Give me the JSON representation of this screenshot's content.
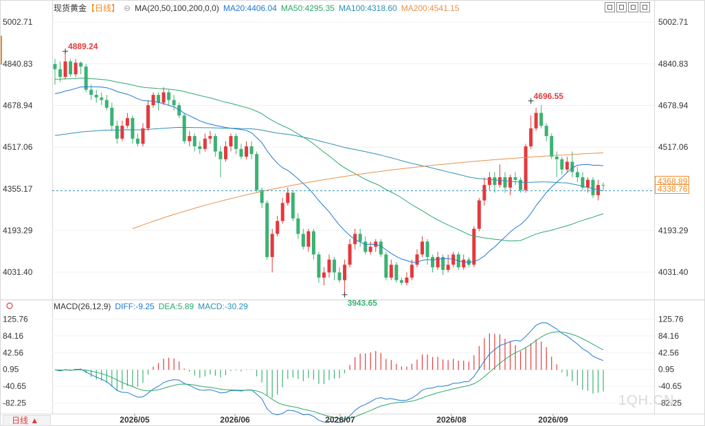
{
  "header": {
    "symbol": "现货黄金",
    "period": "【日线】",
    "settings_glyph": "⊖",
    "ma_label": "MA(20,50,100,200,0,0)",
    "ma20": "MA20:4406.04",
    "ma50": "MA50:4295.35",
    "ma100": "MA100:4318.60",
    "ma200": "MA200:4541.15"
  },
  "macd_header": {
    "label": "MACD(26,12,9)",
    "diff": "DIFF:-9.25",
    "dea": "DEA:5.89",
    "macd": "MACD:-30.29"
  },
  "footer": {
    "period_button": "日线 ▲"
  },
  "watermark": "1QH.CN",
  "colors": {
    "up": "#e4393c",
    "down": "#3bb273",
    "ma20": "#1e78d2",
    "ma50": "#2aa86a",
    "ma100": "#2a8fb5",
    "ma200": "#e8914a",
    "accent": "#f08a24"
  },
  "icons": [
    "zoom-in-icon",
    "zoom-out-icon",
    "prev-icon",
    "next-icon"
  ],
  "chart_data": {
    "type": "candlestick",
    "price_axis": {
      "ticks": [
        "5002.71",
        "4840.83",
        "4678.94",
        "4517.06",
        "4355.17",
        "4193.29",
        "4031.40"
      ],
      "range": [
        3930,
        5030
      ]
    },
    "x_labels": [
      "2026/05",
      "2026/06",
      "2026/07",
      "2026/08",
      "2026/09"
    ],
    "annotations": {
      "high": "4889.24",
      "low": "3943.65",
      "high2": "4696.55"
    },
    "current_price": "4368.89",
    "current_price_ma": "4338.76",
    "candles": [
      [
        4840,
        4820,
        4860,
        4760
      ],
      [
        4820,
        4790,
        4850,
        4770
      ],
      [
        4790,
        4850,
        4889,
        4780
      ],
      [
        4850,
        4800,
        4860,
        4790
      ],
      [
        4800,
        4845,
        4860,
        4790
      ],
      [
        4845,
        4830,
        4850,
        4800
      ],
      [
        4830,
        4740,
        4840,
        4730
      ],
      [
        4740,
        4720,
        4760,
        4700
      ],
      [
        4720,
        4710,
        4740,
        4690
      ],
      [
        4710,
        4700,
        4730,
        4680
      ],
      [
        4700,
        4670,
        4720,
        4660
      ],
      [
        4670,
        4600,
        4690,
        4580
      ],
      [
        4600,
        4550,
        4620,
        4530
      ],
      [
        4550,
        4600,
        4620,
        4540
      ],
      [
        4600,
        4630,
        4650,
        4590
      ],
      [
        4630,
        4550,
        4640,
        4530
      ],
      [
        4550,
        4530,
        4570,
        4520
      ],
      [
        4530,
        4590,
        4610,
        4520
      ],
      [
        4590,
        4680,
        4700,
        4580
      ],
      [
        4680,
        4720,
        4730,
        4670
      ],
      [
        4720,
        4690,
        4730,
        4660
      ],
      [
        4690,
        4730,
        4750,
        4680
      ],
      [
        4730,
        4700,
        4740,
        4680
      ],
      [
        4700,
        4680,
        4720,
        4660
      ],
      [
        4680,
        4640,
        4690,
        4630
      ],
      [
        4640,
        4540,
        4650,
        4530
      ],
      [
        4540,
        4560,
        4580,
        4520
      ],
      [
        4560,
        4520,
        4570,
        4500
      ],
      [
        4520,
        4510,
        4540,
        4490
      ],
      [
        4510,
        4550,
        4570,
        4500
      ],
      [
        4550,
        4560,
        4580,
        4530
      ],
      [
        4560,
        4500,
        4570,
        4480
      ],
      [
        4500,
        4470,
        4520,
        4400
      ],
      [
        4470,
        4520,
        4540,
        4460
      ],
      [
        4520,
        4560,
        4570,
        4500
      ],
      [
        4560,
        4510,
        4570,
        4490
      ],
      [
        4510,
        4480,
        4530,
        4470
      ],
      [
        4480,
        4520,
        4540,
        4470
      ],
      [
        4520,
        4490,
        4540,
        4470
      ],
      [
        4490,
        4350,
        4500,
        4340
      ],
      [
        4350,
        4300,
        4360,
        4280
      ],
      [
        4300,
        4090,
        4310,
        4080
      ],
      [
        4090,
        4180,
        4200,
        4030
      ],
      [
        4180,
        4230,
        4250,
        4170
      ],
      [
        4230,
        4300,
        4320,
        4220
      ],
      [
        4300,
        4340,
        4360,
        4290
      ],
      [
        4340,
        4240,
        4350,
        4230
      ],
      [
        4240,
        4180,
        4260,
        4160
      ],
      [
        4180,
        4130,
        4200,
        4120
      ],
      [
        4130,
        4190,
        4200,
        4110
      ],
      [
        4190,
        4100,
        4200,
        4080
      ],
      [
        4100,
        4010,
        4110,
        3990
      ],
      [
        4010,
        4030,
        4050,
        3980
      ],
      [
        4030,
        4080,
        4100,
        4010
      ],
      [
        4080,
        4030,
        4090,
        4000
      ],
      [
        4030,
        4000,
        4050,
        3990
      ],
      [
        4000,
        4060,
        4080,
        3943
      ],
      [
        4060,
        4140,
        4160,
        4050
      ],
      [
        4140,
        4180,
        4200,
        4120
      ],
      [
        4180,
        4150,
        4200,
        4130
      ],
      [
        4150,
        4110,
        4170,
        4100
      ],
      [
        4110,
        4130,
        4150,
        4100
      ],
      [
        4130,
        4150,
        4160,
        4110
      ],
      [
        4150,
        4100,
        4160,
        4090
      ],
      [
        4100,
        4010,
        4110,
        4000
      ],
      [
        4010,
        4060,
        4080,
        4000
      ],
      [
        4060,
        4000,
        4070,
        3990
      ],
      [
        4000,
        3990,
        4010,
        3980
      ],
      [
        3990,
        4010,
        4030,
        3980
      ],
      [
        4010,
        4060,
        4080,
        4000
      ],
      [
        4060,
        4100,
        4120,
        4050
      ],
      [
        4100,
        4150,
        4170,
        4090
      ],
      [
        4150,
        4090,
        4160,
        4060
      ],
      [
        4090,
        4050,
        4100,
        4030
      ],
      [
        4050,
        4090,
        4110,
        4040
      ],
      [
        4090,
        4040,
        4100,
        4020
      ],
      [
        4040,
        4060,
        4100,
        4030
      ],
      [
        4060,
        4100,
        4110,
        4050
      ],
      [
        4100,
        4050,
        4110,
        4040
      ],
      [
        4050,
        4080,
        4100,
        4040
      ],
      [
        4080,
        4060,
        4090,
        4050
      ],
      [
        4060,
        4200,
        4210,
        4050
      ],
      [
        4200,
        4310,
        4320,
        4190
      ],
      [
        4310,
        4370,
        4400,
        4290
      ],
      [
        4370,
        4400,
        4420,
        4350
      ],
      [
        4400,
        4370,
        4420,
        4340
      ],
      [
        4370,
        4400,
        4450,
        4360
      ],
      [
        4400,
        4360,
        4420,
        4340
      ],
      [
        4360,
        4400,
        4410,
        4330
      ],
      [
        4400,
        4390,
        4420,
        4370
      ],
      [
        4390,
        4350,
        4400,
        4340
      ],
      [
        4350,
        4520,
        4530,
        4340
      ],
      [
        4520,
        4590,
        4640,
        4510
      ],
      [
        4590,
        4650,
        4670,
        4580
      ],
      [
        4650,
        4600,
        4680,
        4590
      ],
      [
        4600,
        4560,
        4610,
        4540
      ],
      [
        4560,
        4480,
        4570,
        4470
      ],
      [
        4480,
        4470,
        4500,
        4400
      ],
      [
        4470,
        4430,
        4480,
        4410
      ],
      [
        4430,
        4460,
        4480,
        4420
      ],
      [
        4460,
        4420,
        4500,
        4400
      ],
      [
        4420,
        4400,
        4440,
        4380
      ],
      [
        4400,
        4360,
        4420,
        4350
      ],
      [
        4360,
        4390,
        4400,
        4340
      ],
      [
        4390,
        4330,
        4400,
        4320
      ],
      [
        4330,
        4370,
        4390,
        4310
      ],
      [
        4370,
        4369,
        4380,
        4350
      ]
    ],
    "macd": {
      "axis_ticks": [
        "125.76",
        "84.16",
        "42.56",
        "0.95",
        "-40.65",
        "-82.25"
      ],
      "range": [
        -105,
        140
      ]
    },
    "series_names": [
      "MA20",
      "MA50",
      "MA100",
      "MA200",
      "DIFF",
      "DEA",
      "MACD"
    ]
  }
}
